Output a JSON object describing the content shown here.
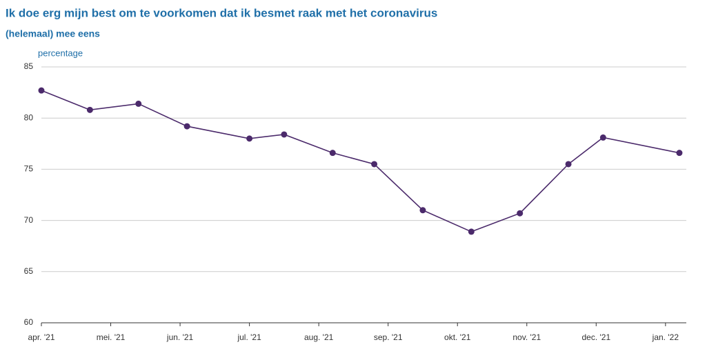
{
  "chart_data": {
    "type": "line",
    "title": "Ik doe erg mijn best om te voorkomen dat ik besmet raak met het coronavirus",
    "subtitle": "(helemaal) mee eens",
    "y_label": "percentage",
    "x": [
      0,
      0.7,
      1.4,
      2.1,
      3,
      3.5,
      4.2,
      4.8,
      5.5,
      6.2,
      6.9,
      7.6,
      8.1,
      9.2
    ],
    "series": [
      {
        "name": "(helemaal) mee eens",
        "color": "#4b2a6b",
        "values": [
          82.7,
          80.8,
          81.4,
          79.2,
          78.0,
          78.4,
          76.6,
          75.5,
          71.0,
          68.9,
          70.7,
          75.5,
          78.1,
          76.6
        ]
      }
    ],
    "xlim": [
      0,
      9.3
    ],
    "xticks": [
      {
        "value": 0,
        "label": "apr. '21"
      },
      {
        "value": 1,
        "label": "mei. '21"
      },
      {
        "value": 2,
        "label": "jun. '21"
      },
      {
        "value": 3,
        "label": "jul. '21"
      },
      {
        "value": 4,
        "label": "aug. '21"
      },
      {
        "value": 5,
        "label": "sep. '21"
      },
      {
        "value": 6,
        "label": "okt. '21"
      },
      {
        "value": 7,
        "label": "nov. '21"
      },
      {
        "value": 8,
        "label": "dec. '21"
      },
      {
        "value": 9,
        "label": "jan. '22"
      }
    ],
    "ylim": [
      60,
      85
    ],
    "yticks": [
      60,
      65,
      70,
      75,
      80,
      85
    ],
    "grid": true
  }
}
